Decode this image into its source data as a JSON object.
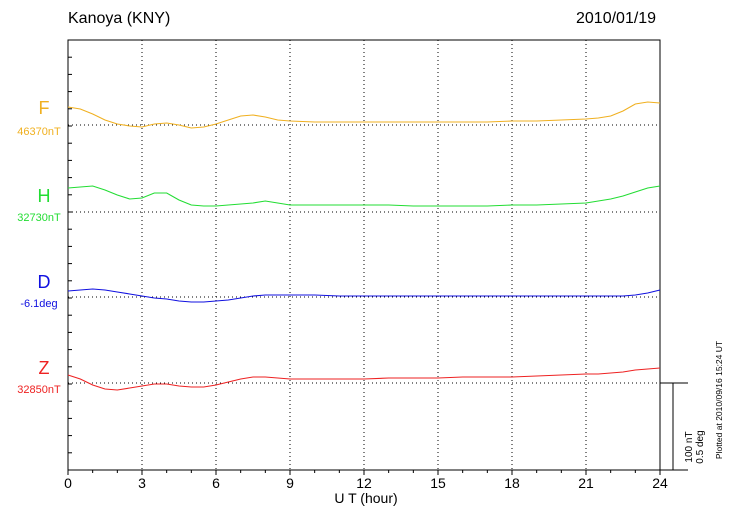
{
  "header": {
    "station": "Kanoya (KNY)",
    "date": "2010/01/19"
  },
  "scale": {
    "line1": "100 nT",
    "line2": "0.5 deg"
  },
  "plotted_note": "Plotted at 2010/09/16 15:24 UT",
  "chart_data": {
    "type": "line",
    "title": "Kanoya (KNY)",
    "subtitle": "2010/01/19",
    "xlabel": "U T (hour)",
    "xlim": [
      0,
      24
    ],
    "xticks": [
      0,
      3,
      6,
      9,
      12,
      15,
      18,
      21,
      24
    ],
    "grid": true,
    "scale_bar": "100 nT / 0.5 deg",
    "series": [
      {
        "name": "F",
        "baseline_label": "46370nT",
        "unit": "nT",
        "color": "#f0b020",
        "x": [
          0,
          0.5,
          1,
          1.5,
          2,
          2.5,
          3,
          3.5,
          4,
          4.5,
          5,
          5.5,
          6,
          6.5,
          7,
          7.5,
          8,
          8.5,
          9,
          10,
          11,
          12,
          13,
          14,
          15,
          16,
          17,
          18,
          19,
          20,
          21,
          21.5,
          22,
          22.5,
          23,
          23.5,
          24
        ],
        "y": [
          18,
          16,
          11,
          5,
          1,
          -1,
          -2,
          1,
          2,
          0,
          -3,
          -2,
          1,
          5,
          9,
          10,
          8,
          5,
          4,
          3,
          3,
          3,
          3,
          3,
          3,
          3,
          3,
          4,
          4,
          5,
          6,
          7,
          9,
          14,
          21,
          23,
          22
        ]
      },
      {
        "name": "H",
        "baseline_label": "32730nT",
        "unit": "nT",
        "color": "#22dd33",
        "x": [
          0,
          0.5,
          1,
          1.5,
          2,
          2.5,
          3,
          3.5,
          4,
          4.5,
          5,
          5.5,
          6,
          6.5,
          7,
          7.5,
          8,
          8.5,
          9,
          10,
          11,
          12,
          13,
          14,
          15,
          16,
          17,
          18,
          19,
          20,
          21,
          21.5,
          22,
          22.5,
          23,
          23.5,
          24
        ],
        "y": [
          24,
          25,
          26,
          22,
          17,
          13,
          14,
          19,
          19,
          12,
          7,
          6,
          6,
          7,
          8,
          9,
          11,
          9,
          7,
          7,
          7,
          7,
          7,
          6,
          6,
          6,
          6,
          7,
          7,
          8,
          9,
          11,
          13,
          16,
          20,
          24,
          26
        ]
      },
      {
        "name": "D",
        "baseline_label": "-6.1deg",
        "unit": "deg",
        "color": "#1010e0",
        "x": [
          0,
          0.5,
          1,
          1.5,
          2,
          2.5,
          3,
          3.5,
          4,
          4.5,
          5,
          5.5,
          6,
          6.5,
          7,
          7.5,
          8,
          8.5,
          9,
          10,
          11,
          12,
          13,
          14,
          15,
          16,
          17,
          18,
          19,
          20,
          21,
          21.5,
          22,
          22.5,
          23,
          23.5,
          24
        ],
        "y": [
          6,
          7,
          8,
          7,
          5,
          3,
          1,
          -1,
          -2,
          -4,
          -5,
          -5,
          -4,
          -3,
          -1,
          1,
          2,
          2,
          2,
          2,
          1,
          1,
          1,
          1,
          1,
          1,
          1,
          1,
          1,
          1,
          1,
          1,
          1,
          1,
          2,
          4,
          7
        ]
      },
      {
        "name": "Z",
        "baseline_label": "32850nT",
        "unit": "nT",
        "color": "#ee2222",
        "x": [
          0,
          0.5,
          1,
          1.5,
          2,
          2.5,
          3,
          3.5,
          4,
          4.5,
          5,
          5.5,
          6,
          6.5,
          7,
          7.5,
          8,
          8.5,
          9,
          10,
          11,
          12,
          13,
          14,
          15,
          16,
          17,
          18,
          19,
          20,
          21,
          21.5,
          22,
          22.5,
          23,
          23.5,
          24
        ],
        "y": [
          8,
          4,
          -2,
          -6,
          -7,
          -5,
          -3,
          -1,
          -1,
          -3,
          -4,
          -4,
          -2,
          1,
          4,
          6,
          6,
          5,
          4,
          4,
          4,
          4,
          5,
          5,
          5,
          6,
          6,
          6,
          7,
          8,
          9,
          9,
          10,
          11,
          13,
          14,
          15
        ]
      }
    ]
  }
}
